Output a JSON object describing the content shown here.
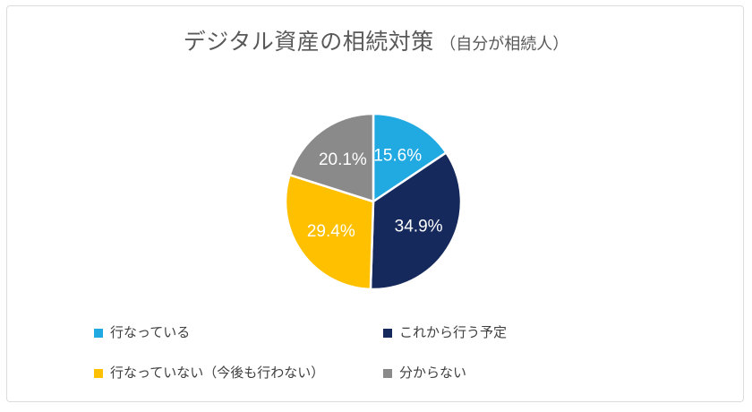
{
  "title": {
    "main": "デジタル資産の相続対策",
    "sub": "（自分が相続人）"
  },
  "chart_data": {
    "type": "pie",
    "title": "デジタル資産の相続対策（自分が相続人）",
    "categories": [
      "行なっている",
      "これから行う予定",
      "行なっていない（今後も行わない）",
      "分からない"
    ],
    "values": [
      15.6,
      34.9,
      29.4,
      20.1
    ],
    "labels": [
      "15.6%",
      "34.9%",
      "29.4%",
      "20.1%"
    ],
    "colors": [
      "#21A9E2",
      "#16295C",
      "#FFC000",
      "#8A8A8A"
    ],
    "unit": "%",
    "start_angle_deg": 0,
    "direction": "clockwise",
    "data_label_color": "#FFFFFF",
    "slice_border_color": "#FFFFFF",
    "legend_position": "bottom",
    "title_color": "#595959",
    "legend_text_color": "#3F3F3F"
  }
}
